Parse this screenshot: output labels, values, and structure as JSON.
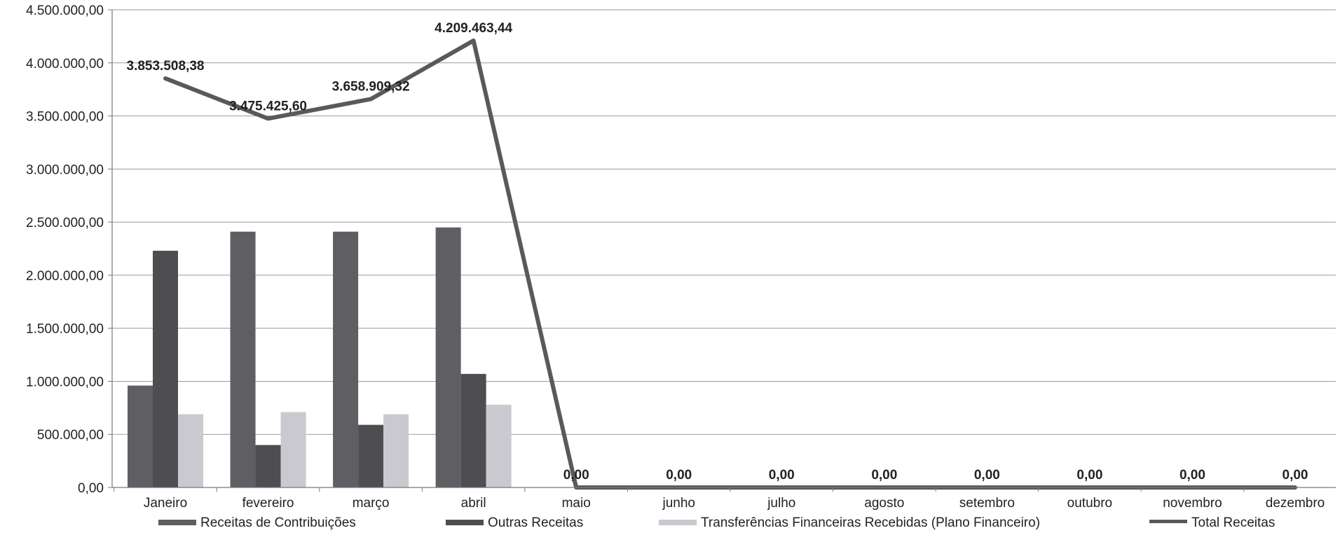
{
  "chart_data": {
    "type": "bar",
    "title": "",
    "xlabel": "",
    "ylabel": "",
    "ylim": [
      0,
      4500000
    ],
    "ytick_values": [
      0,
      500000,
      1000000,
      1500000,
      2000000,
      2500000,
      3000000,
      3500000,
      4000000,
      4500000
    ],
    "ytick_labels": [
      "0,00",
      "500.000,00",
      "1.000.000,00",
      "1.500.000,00",
      "2.000.000,00",
      "2.500.000,00",
      "3.000.000,00",
      "3.500.000,00",
      "4.000.000,00",
      "4.500.000,00"
    ],
    "categories": [
      "Janeiro",
      "fevereiro",
      "março",
      "abril",
      "maio",
      "junho",
      "julho",
      "agosto",
      "setembro",
      "outubro",
      "novembro",
      "dezembro"
    ],
    "grid": true,
    "legend_position": "bottom",
    "series": [
      {
        "name": "Receitas de Contribuições",
        "kind": "bar",
        "color": "#5f5f63",
        "values": [
          960000,
          2410000,
          2410000,
          2450000,
          0,
          0,
          0,
          0,
          0,
          0,
          0,
          0
        ]
      },
      {
        "name": "Outras Receitas",
        "kind": "bar",
        "color": "#4e4e52",
        "values": [
          2230000,
          400000,
          590000,
          1070000,
          0,
          0,
          0,
          0,
          0,
          0,
          0,
          0
        ]
      },
      {
        "name": "Transferências Financeiras Recebidas (Plano Financeiro)",
        "kind": "bar",
        "color": "#c9c9cf",
        "values": [
          690000,
          710000,
          690000,
          780000,
          0,
          0,
          0,
          0,
          0,
          0,
          0,
          0
        ]
      },
      {
        "name": "Total Receitas",
        "kind": "line",
        "color": "#59595d",
        "values": [
          3853508.38,
          3475425.6,
          3658909.32,
          4209463.44,
          0,
          0,
          0,
          0,
          0,
          0,
          0,
          0
        ],
        "data_labels": [
          "3.853.508,38",
          "3.475.425,60",
          "3.658.909,32",
          "4.209.463,44",
          "0,00",
          "0,00",
          "0,00",
          "0,00",
          "0,00",
          "0,00",
          "0,00",
          "0,00"
        ]
      }
    ]
  }
}
